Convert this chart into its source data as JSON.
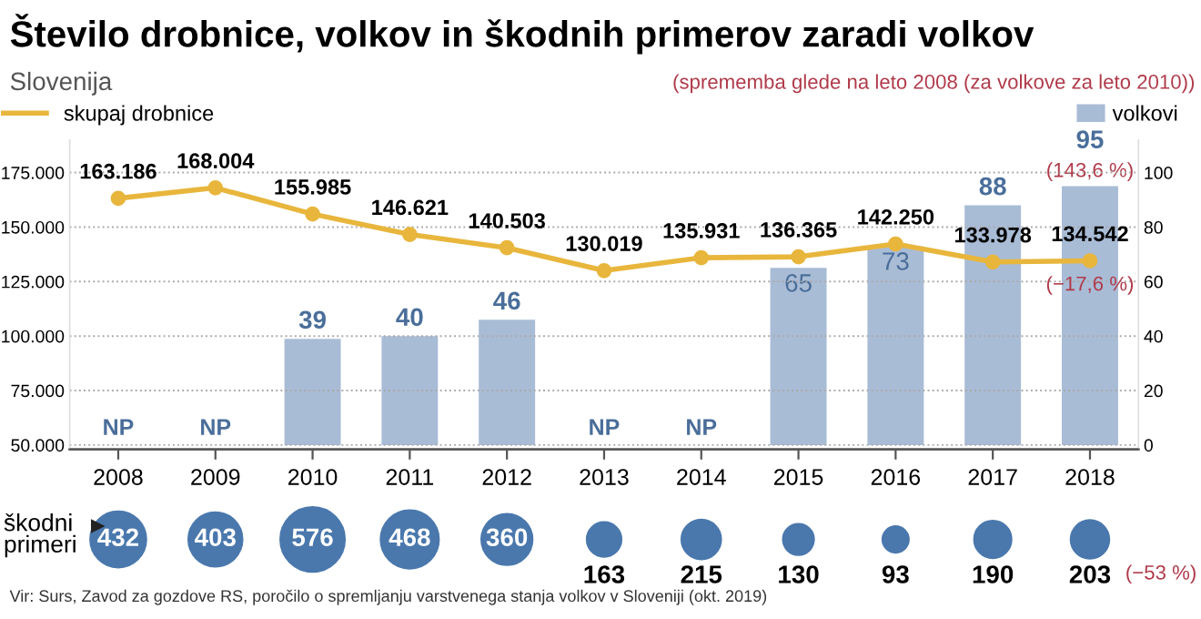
{
  "chart_data": [
    {
      "type": "bar",
      "title": "Število drobnice, volkov in škodnih primerov zaradi volkov",
      "subtitle": "Slovenija",
      "categories": [
        "2008",
        "2009",
        "2010",
        "2011",
        "2012",
        "2013",
        "2014",
        "2015",
        "2016",
        "2017",
        "2018"
      ],
      "series": [
        {
          "name": "skupaj drobnice",
          "type": "line",
          "color": "#e8b63c",
          "values": [
            163186,
            168004,
            155985,
            146621,
            140503,
            130019,
            135931,
            136365,
            142250,
            133978,
            134542
          ],
          "value_labels": [
            "163.186",
            "168.004",
            "155.985",
            "146.621",
            "140.503",
            "130.019",
            "135.931",
            "136.365",
            "142.250",
            "133.978",
            "134.542"
          ]
        },
        {
          "name": "volkovi",
          "type": "bar",
          "axis": "y2",
          "color": "#a9bcd6",
          "values": [
            null,
            null,
            39,
            40,
            46,
            null,
            null,
            65,
            73,
            88,
            95
          ],
          "value_labels": [
            "NP",
            "NP",
            "39",
            "40",
            "46",
            "NP",
            "NP",
            "65",
            "73",
            "88",
            "95"
          ]
        }
      ],
      "ylim": [
        48000,
        190000
      ],
      "yticks": [
        {
          "value": 50000,
          "label": "50.000"
        },
        {
          "value": 75000,
          "label": "75.000"
        },
        {
          "value": 100000,
          "label": "100.000"
        },
        {
          "value": 125000,
          "label": "125.000"
        },
        {
          "value": 150000,
          "label": "150.000"
        },
        {
          "value": 175000,
          "label": "175.000"
        }
      ],
      "y2lim": [
        -1.6,
        112
      ],
      "y2ticks": [
        0,
        20,
        40,
        60,
        80,
        100
      ],
      "grid": "y",
      "legend": "top",
      "marker": "circle",
      "line_style": "solid",
      "annotations": [
        "(sprememba glede na leto 2008 (za volkove za leto 2010))",
        "(143,6 %)",
        {
          "text": "(−17,6 %)",
          "x": "2018",
          "y": 134542
        }
      ]
    },
    {
      "type": "other",
      "ylabel": "škodni primeri",
      "color": "#4a78ad",
      "values": [
        432,
        403,
        576,
        468,
        360,
        163,
        215,
        130,
        93,
        190,
        203
      ],
      "data_labels": true,
      "annotations": [
        "(−53 %)",
        "Vir: Surs, Zavod za gozdove RS, poročilo o spremljanju varstvenega stanja volkov v Sloveniji (okt. 2019)"
      ]
    }
  ]
}
